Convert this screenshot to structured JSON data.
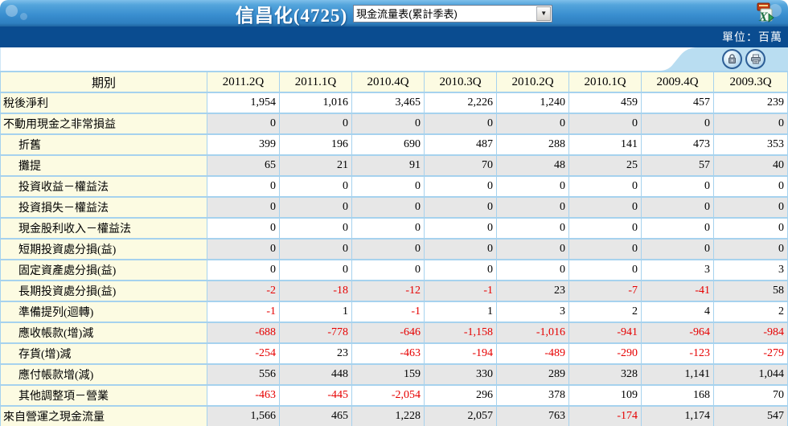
{
  "header": {
    "title": "信昌化(4725)",
    "report_select": {
      "value": "現金流量表(累計季表)",
      "arrow": "▼"
    },
    "unit_label": "單位：百萬",
    "icons": [
      "export-excel-icon",
      "lock-icon",
      "printer-icon"
    ]
  },
  "colors": {
    "topbar_blue": "#3a8fd0",
    "navy_bar": "#0a4c90",
    "table_border": "#a6d2ee",
    "label_bg": "#fcfbe2",
    "alt_row_bg": "#e7e7e7",
    "negative_value": "#e60000",
    "tab_bg": "#b9ddf1"
  },
  "table": {
    "period_header": "期別",
    "columns": [
      "2011.2Q",
      "2011.1Q",
      "2010.4Q",
      "2010.3Q",
      "2010.2Q",
      "2010.1Q",
      "2009.4Q",
      "2009.3Q"
    ],
    "rows": [
      {
        "label": "稅後淨利",
        "indent": false,
        "values": [
          "1,954",
          "1,016",
          "3,465",
          "2,226",
          "1,240",
          "459",
          "457",
          "239"
        ]
      },
      {
        "label": "不動用現金之非常損益",
        "indent": false,
        "values": [
          "0",
          "0",
          "0",
          "0",
          "0",
          "0",
          "0",
          "0"
        ]
      },
      {
        "label": "折舊",
        "indent": true,
        "values": [
          "399",
          "196",
          "690",
          "487",
          "288",
          "141",
          "473",
          "353"
        ]
      },
      {
        "label": "攤提",
        "indent": true,
        "values": [
          "65",
          "21",
          "91",
          "70",
          "48",
          "25",
          "57",
          "40"
        ]
      },
      {
        "label": "投資收益－權益法",
        "indent": true,
        "values": [
          "0",
          "0",
          "0",
          "0",
          "0",
          "0",
          "0",
          "0"
        ]
      },
      {
        "label": "投資損失－權益法",
        "indent": true,
        "values": [
          "0",
          "0",
          "0",
          "0",
          "0",
          "0",
          "0",
          "0"
        ]
      },
      {
        "label": "現金股利收入－權益法",
        "indent": true,
        "values": [
          "0",
          "0",
          "0",
          "0",
          "0",
          "0",
          "0",
          "0"
        ]
      },
      {
        "label": "短期投資處分損(益)",
        "indent": true,
        "values": [
          "0",
          "0",
          "0",
          "0",
          "0",
          "0",
          "0",
          "0"
        ]
      },
      {
        "label": "固定資產處分損(益)",
        "indent": true,
        "values": [
          "0",
          "0",
          "0",
          "0",
          "0",
          "0",
          "3",
          "3"
        ]
      },
      {
        "label": "長期投資處分損(益)",
        "indent": true,
        "values": [
          "-2",
          "-18",
          "-12",
          "-1",
          "23",
          "-7",
          "-41",
          "58"
        ]
      },
      {
        "label": "準備提列(迴轉)",
        "indent": true,
        "values": [
          "-1",
          "1",
          "-1",
          "1",
          "3",
          "2",
          "4",
          "2"
        ]
      },
      {
        "label": "應收帳款(增)減",
        "indent": true,
        "values": [
          "-688",
          "-778",
          "-646",
          "-1,158",
          "-1,016",
          "-941",
          "-964",
          "-984"
        ]
      },
      {
        "label": "存貨(增)減",
        "indent": true,
        "values": [
          "-254",
          "23",
          "-463",
          "-194",
          "-489",
          "-290",
          "-123",
          "-279"
        ]
      },
      {
        "label": "應付帳款增(減)",
        "indent": true,
        "values": [
          "556",
          "448",
          "159",
          "330",
          "289",
          "328",
          "1,141",
          "1,044"
        ]
      },
      {
        "label": "其他調整項－營業",
        "indent": true,
        "values": [
          "-463",
          "-445",
          "-2,054",
          "296",
          "378",
          "109",
          "168",
          "70"
        ]
      },
      {
        "label": "來自營運之現金流量",
        "indent": false,
        "values": [
          "1,566",
          "465",
          "1,228",
          "2,057",
          "763",
          "-174",
          "1,174",
          "547"
        ]
      }
    ]
  }
}
